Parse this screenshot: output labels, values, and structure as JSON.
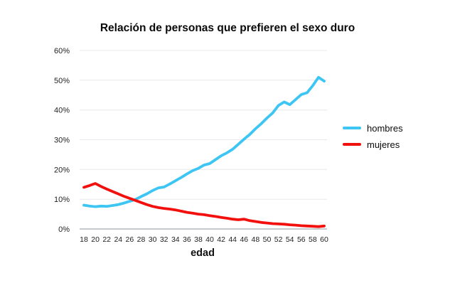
{
  "chart_data": {
    "type": "line",
    "title": "Relación de personas que prefieren el sexo duro",
    "xlabel": "edad",
    "ylabel": "",
    "x_range": [
      18,
      60
    ],
    "ylim": [
      0,
      60
    ],
    "grid": true,
    "legend_position": "right",
    "background": "#FFFFFF",
    "colors": {
      "grid": "#E5E8EC",
      "axis": "#8F9499",
      "tick_text": "#222222",
      "title_text": "#0A0A0A"
    },
    "x": [
      18,
      19,
      20,
      21,
      22,
      23,
      24,
      25,
      26,
      27,
      28,
      29,
      30,
      31,
      32,
      33,
      34,
      35,
      36,
      37,
      38,
      39,
      40,
      41,
      42,
      43,
      44,
      45,
      46,
      47,
      48,
      49,
      50,
      51,
      52,
      53,
      54,
      55,
      56,
      57,
      58,
      59,
      60
    ],
    "x_tick_labels": [
      "18",
      "20",
      "22",
      "24",
      "26",
      "28",
      "30",
      "32",
      "34",
      "36",
      "38",
      "40",
      "42",
      "44",
      "46",
      "48",
      "50",
      "52",
      "54",
      "56",
      "58",
      "60"
    ],
    "y_tick_values": [
      0,
      10,
      20,
      30,
      40,
      50,
      60
    ],
    "y_tick_labels": [
      "0%",
      "10%",
      "20%",
      "30%",
      "40%",
      "50%",
      "60%"
    ],
    "series": [
      {
        "name": "hombres",
        "color": "#3DC5F3",
        "values": [
          8.0,
          7.7,
          7.5,
          7.7,
          7.6,
          7.9,
          8.2,
          8.7,
          9.3,
          9.9,
          10.9,
          11.8,
          12.9,
          13.8,
          14.1,
          15.1,
          16.2,
          17.3,
          18.5,
          19.6,
          20.4,
          21.5,
          22.0,
          23.3,
          24.6,
          25.6,
          26.8,
          28.5,
          30.2,
          31.8,
          33.7,
          35.4,
          37.3,
          39.0,
          41.5,
          42.7,
          41.8,
          43.5,
          45.2,
          45.8,
          48.2,
          51.0,
          49.7
        ]
      },
      {
        "name": "mujeres",
        "color": "#F2100C",
        "values": [
          14.0,
          14.6,
          15.3,
          14.3,
          13.4,
          12.6,
          11.8,
          11.0,
          10.3,
          9.6,
          8.9,
          8.2,
          7.6,
          7.2,
          6.9,
          6.7,
          6.4,
          6.0,
          5.6,
          5.3,
          5.0,
          4.8,
          4.5,
          4.2,
          3.9,
          3.6,
          3.3,
          3.1,
          3.3,
          2.8,
          2.5,
          2.2,
          2.0,
          1.8,
          1.7,
          1.6,
          1.4,
          1.3,
          1.1,
          1.0,
          0.9,
          0.8,
          1.0
        ]
      }
    ]
  }
}
